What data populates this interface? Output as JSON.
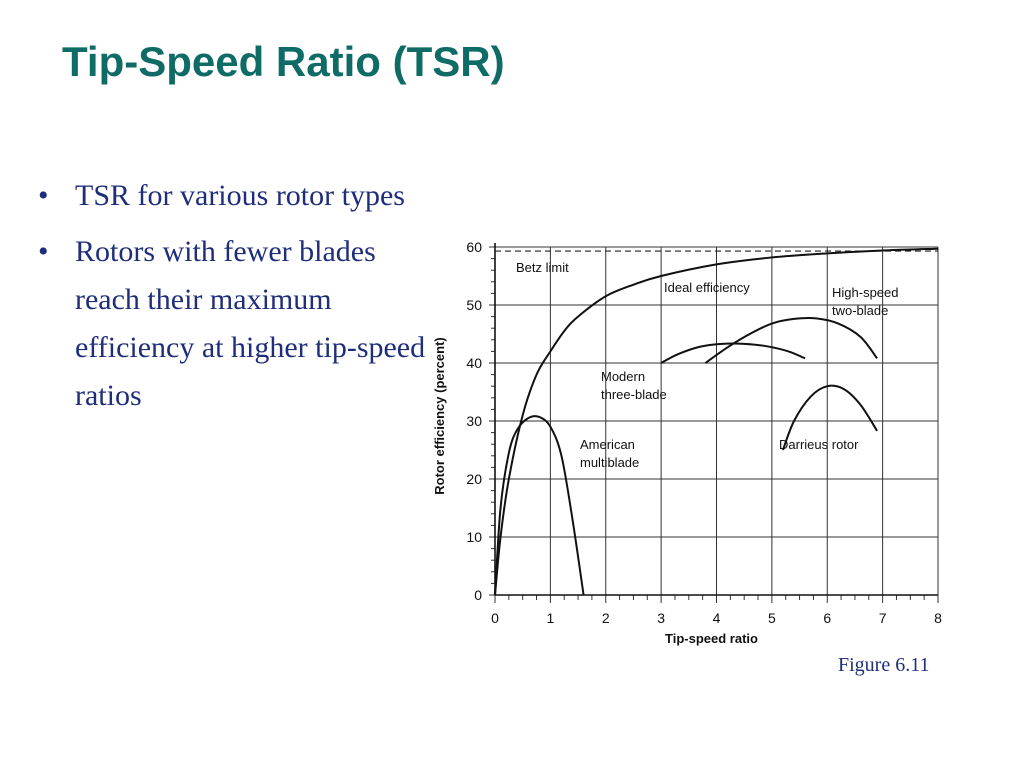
{
  "slide": {
    "title": "Tip-Speed Ratio (TSR)",
    "bullet_char": "•",
    "bullets": [
      "TSR for various rotor types",
      "Rotors with fewer blades reach their maximum efficiency at higher tip-speed ratios"
    ],
    "caption": "Figure 6.11",
    "colors": {
      "title": "#0e6b66",
      "body_text": "#1f2d7a"
    }
  },
  "chart_data": {
    "type": "line",
    "title": "",
    "xlabel": "Tip-speed ratio",
    "ylabel": "Rotor efficiency (percent)",
    "xlim": [
      0,
      8
    ],
    "ylim": [
      0,
      60
    ],
    "x_ticks": [
      "0",
      "1",
      "2",
      "3",
      "4",
      "5",
      "6",
      "7",
      "8"
    ],
    "y_ticks": [
      "0",
      "10",
      "20",
      "30",
      "40",
      "50",
      "60"
    ],
    "grid": true,
    "reference_lines": [
      {
        "label": "Betz limit",
        "y": 59.3,
        "style": "dashed"
      }
    ],
    "series": [
      {
        "name": "Ideal efficiency",
        "x": [
          0,
          0.1,
          0.25,
          0.5,
          0.75,
          1,
          1.25,
          1.5,
          2,
          2.5,
          3,
          4,
          5,
          6,
          7,
          8
        ],
        "y": [
          0,
          10,
          20,
          31,
          38,
          42,
          45.5,
          48,
          51.5,
          53.5,
          55,
          57,
          58.2,
          58.9,
          59.4,
          59.7
        ]
      },
      {
        "name": "American multiblade",
        "x": [
          0,
          0.1,
          0.25,
          0.4,
          0.6,
          0.8,
          1,
          1.2,
          1.4,
          1.6
        ],
        "y": [
          0,
          15,
          24.5,
          28.5,
          30.5,
          30.7,
          29,
          24,
          13,
          0
        ]
      },
      {
        "name": "Modern three-blade",
        "x": [
          3,
          3.3,
          3.7,
          4.1,
          4.5,
          4.9,
          5.3,
          5.6
        ],
        "y": [
          40,
          41.5,
          42.8,
          43.3,
          43.3,
          42.9,
          42,
          40.8
        ]
      },
      {
        "name": "High-speed two-blade",
        "x": [
          3.8,
          4.2,
          4.6,
          5,
          5.4,
          5.8,
          6.2,
          6.6,
          6.9
        ],
        "y": [
          40,
          42.7,
          45,
          46.8,
          47.6,
          47.7,
          46.8,
          44.5,
          40.8
        ]
      },
      {
        "name": "Darrieus rotor",
        "x": [
          5.2,
          5.4,
          5.7,
          6,
          6.3,
          6.6,
          6.9
        ],
        "y": [
          25,
          30,
          34.2,
          36,
          35.5,
          32.8,
          28.3
        ]
      }
    ]
  }
}
